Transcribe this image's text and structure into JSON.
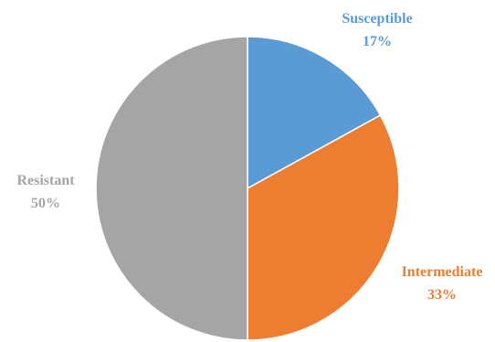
{
  "chart_data": {
    "type": "pie",
    "title": "",
    "slices": [
      {
        "name": "Susceptible",
        "value": 17,
        "label": "17%",
        "color": "#5b9bd5"
      },
      {
        "name": "Intermediate",
        "value": 33,
        "label": "33%",
        "color": "#ed7d31"
      },
      {
        "name": "Resistant",
        "value": 50,
        "label": "50%",
        "color": "#a5a5a5"
      }
    ],
    "legend": "none",
    "start_angle": "12 o'clock, clockwise"
  }
}
